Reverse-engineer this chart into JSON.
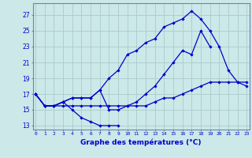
{
  "title": "Graphe des températures (°C)",
  "x_hours": [
    0,
    1,
    2,
    3,
    4,
    5,
    6,
    7,
    8,
    9,
    10,
    11,
    12,
    13,
    14,
    15,
    16,
    17,
    18,
    19,
    20,
    21,
    22,
    23
  ],
  "line1_y": [
    17,
    15.5,
    15.5,
    16,
    15,
    14,
    13.5,
    13,
    13,
    13
  ],
  "line1_x": [
    0,
    1,
    2,
    3,
    4,
    5,
    6,
    7,
    8,
    9
  ],
  "line2_y": [
    17,
    15.5,
    15.5,
    16,
    16.5,
    16.5,
    16.5,
    17.5,
    15,
    15,
    15.5,
    16,
    17,
    18,
    19.5,
    21,
    22.5,
    22,
    25,
    23
  ],
  "line2_x": [
    0,
    1,
    2,
    3,
    4,
    5,
    6,
    7,
    8,
    9,
    10,
    11,
    12,
    13,
    14,
    15,
    16,
    17,
    18,
    19
  ],
  "line3_y": [
    17,
    15.5,
    15.5,
    16,
    16.5,
    16.5,
    16.5,
    17.5,
    19,
    20,
    22,
    22.5,
    23.5,
    24,
    25.5,
    26,
    26.5,
    27.5,
    26.5,
    25,
    23,
    20,
    18.5,
    18
  ],
  "line3_x": [
    0,
    1,
    2,
    3,
    4,
    5,
    6,
    7,
    8,
    9,
    10,
    11,
    12,
    13,
    14,
    15,
    16,
    17,
    18,
    19,
    20,
    21,
    22,
    23
  ],
  "line4_y": [
    17,
    15.5,
    15.5,
    15.5,
    15.5,
    15.5,
    15.5,
    15.5,
    15.5,
    15.5,
    15.5,
    15.5,
    15.5,
    16,
    16.5,
    16.5,
    17,
    17.5,
    18,
    18.5,
    18.5,
    18.5,
    18.5,
    18.5
  ],
  "line4_x": [
    0,
    1,
    2,
    3,
    4,
    5,
    6,
    7,
    8,
    9,
    10,
    11,
    12,
    13,
    14,
    15,
    16,
    17,
    18,
    19,
    20,
    21,
    22,
    23
  ],
  "xlim": [
    -0.3,
    23.3
  ],
  "ylim": [
    12.5,
    28.5
  ],
  "yticks": [
    13,
    15,
    17,
    19,
    21,
    23,
    25,
    27
  ],
  "xtick_labels": [
    "0",
    "1",
    "2",
    "3",
    "4",
    "5",
    "6",
    "7",
    "8",
    "9",
    "10",
    "11",
    "12",
    "13",
    "14",
    "15",
    "16",
    "17",
    "18",
    "19",
    "20",
    "21",
    "22",
    "23"
  ],
  "line_color": "#0000cc",
  "bg_color": "#cce8e8",
  "grid_color": "#aacccc",
  "spine_color": "#6688aa"
}
